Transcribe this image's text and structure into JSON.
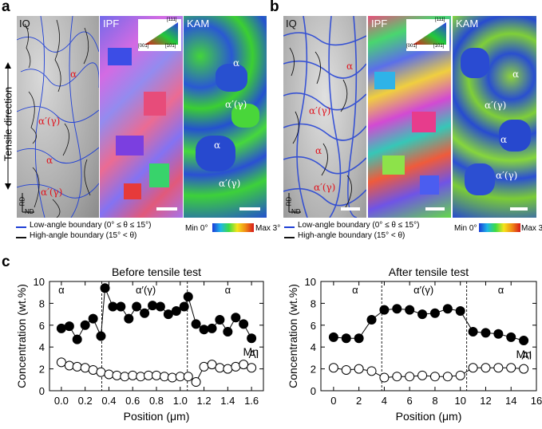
{
  "panel_a": {
    "letter": "a",
    "labels": {
      "iq": "IQ",
      "ipf": "IPF",
      "kam": "KAM"
    },
    "tensile_direction": "Tensile direction",
    "axes": {
      "rd": "RD",
      "nd": "ND"
    },
    "phase_alpha": "α",
    "phase_prime": "α′(γ)",
    "ipf_triangle": {
      "top": "[111]",
      "left": "[001]",
      "right": "[101]"
    }
  },
  "panel_b": {
    "letter": "b",
    "labels": {
      "iq": "IQ",
      "ipf": "IPF",
      "kam": "KAM"
    },
    "axes": {
      "rd": "RD",
      "nd": "ND"
    },
    "phase_alpha": "α",
    "phase_prime": "α′(γ)",
    "ipf_triangle": {
      "top": "[111]",
      "left": "[001]",
      "right": "[101]"
    }
  },
  "legend": {
    "low_angle": "Low-angle boundary (0° ≤ θ ≤ 15°)",
    "high_angle": "High-angle boundary (15° < θ)",
    "kam_min": "Min 0°",
    "kam_max": "Max 3°",
    "low_color": "#1f3fd6",
    "high_color": "#111111"
  },
  "panel_c": {
    "letter": "c"
  },
  "chart_data": [
    {
      "type": "line",
      "title": "Before tensile test",
      "xlabel": "Position (μm)",
      "ylabel": "Concentration (wt.%)",
      "xlim": [
        -0.1,
        1.7
      ],
      "ylim": [
        0,
        10
      ],
      "xticks": [
        0.0,
        0.2,
        0.4,
        0.6,
        0.8,
        1.0,
        1.2,
        1.4,
        1.6
      ],
      "xtick_labels": [
        "0.0",
        "0.2",
        "0.4",
        "0.6",
        "0.8",
        "1.0",
        "1.2",
        "1.4",
        "1.6"
      ],
      "yticks": [
        0,
        2,
        4,
        6,
        8,
        10
      ],
      "region_boundaries": [
        0.34,
        1.06
      ],
      "region_labels": [
        {
          "text": "α",
          "x": 0.0
        },
        {
          "text": "α′(γ)",
          "x": 0.71
        },
        {
          "text": "α",
          "x": 1.4
        }
      ],
      "series": [
        {
          "name": "Mn",
          "marker": "filled",
          "x": [
            0.0,
            0.067,
            0.133,
            0.2,
            0.267,
            0.333,
            0.367,
            0.433,
            0.5,
            0.567,
            0.633,
            0.7,
            0.767,
            0.833,
            0.9,
            0.967,
            1.033,
            1.067,
            1.133,
            1.2,
            1.267,
            1.333,
            1.4,
            1.467,
            1.533,
            1.6
          ],
          "values": [
            5.7,
            5.9,
            4.7,
            6.0,
            6.6,
            5.0,
            9.4,
            7.7,
            7.7,
            6.6,
            7.7,
            7.1,
            7.8,
            7.7,
            7.0,
            7.3,
            7.7,
            8.6,
            6.1,
            5.6,
            5.7,
            6.5,
            5.4,
            6.7,
            6.1,
            4.8
          ]
        },
        {
          "name": "Al",
          "marker": "open",
          "x": [
            0.0,
            0.067,
            0.133,
            0.2,
            0.267,
            0.333,
            0.4,
            0.467,
            0.533,
            0.6,
            0.667,
            0.733,
            0.8,
            0.867,
            0.933,
            1.0,
            1.067,
            1.133,
            1.2,
            1.267,
            1.333,
            1.4,
            1.467,
            1.533,
            1.6
          ],
          "values": [
            2.6,
            2.3,
            2.2,
            2.1,
            1.9,
            1.7,
            1.5,
            1.4,
            1.3,
            1.4,
            1.3,
            1.4,
            1.4,
            1.3,
            1.2,
            1.3,
            1.3,
            0.8,
            2.2,
            2.4,
            2.1,
            2.0,
            2.2,
            2.4,
            2.1
          ]
        }
      ]
    },
    {
      "type": "line",
      "title": "After tensile test",
      "xlabel": "Position (μm)",
      "ylabel": "Concentration (wt.%)",
      "xlim": [
        -1,
        16
      ],
      "ylim": [
        0,
        10
      ],
      "xticks": [
        0,
        2,
        4,
        6,
        8,
        10,
        12,
        14,
        16
      ],
      "xtick_labels": [
        "0",
        "2",
        "4",
        "6",
        "8",
        "10",
        "12",
        "14",
        "16"
      ],
      "yticks": [
        0,
        2,
        4,
        6,
        8,
        10
      ],
      "region_boundaries": [
        3.8,
        10.5
      ],
      "region_labels": [
        {
          "text": "α",
          "x": 1.7
        },
        {
          "text": "α′(γ)",
          "x": 7.1
        },
        {
          "text": "α",
          "x": 13.2
        }
      ],
      "series": [
        {
          "name": "Mn",
          "marker": "filled",
          "x": [
            0,
            1,
            2,
            3,
            4,
            5,
            6,
            7,
            8,
            9,
            10,
            11,
            12,
            13,
            14,
            15
          ],
          "values": [
            4.9,
            4.8,
            4.8,
            6.5,
            7.4,
            7.5,
            7.4,
            7.0,
            7.1,
            7.5,
            7.3,
            5.4,
            5.3,
            5.2,
            4.9,
            4.6
          ]
        },
        {
          "name": "Al",
          "marker": "open",
          "x": [
            0,
            1,
            2,
            3,
            4,
            5,
            6,
            7,
            8,
            9,
            10,
            11,
            12,
            13,
            14,
            15
          ],
          "values": [
            2.1,
            1.9,
            2.0,
            1.8,
            1.2,
            1.3,
            1.3,
            1.4,
            1.3,
            1.3,
            1.4,
            2.1,
            2.1,
            2.1,
            2.1,
            2.0
          ]
        }
      ]
    }
  ]
}
